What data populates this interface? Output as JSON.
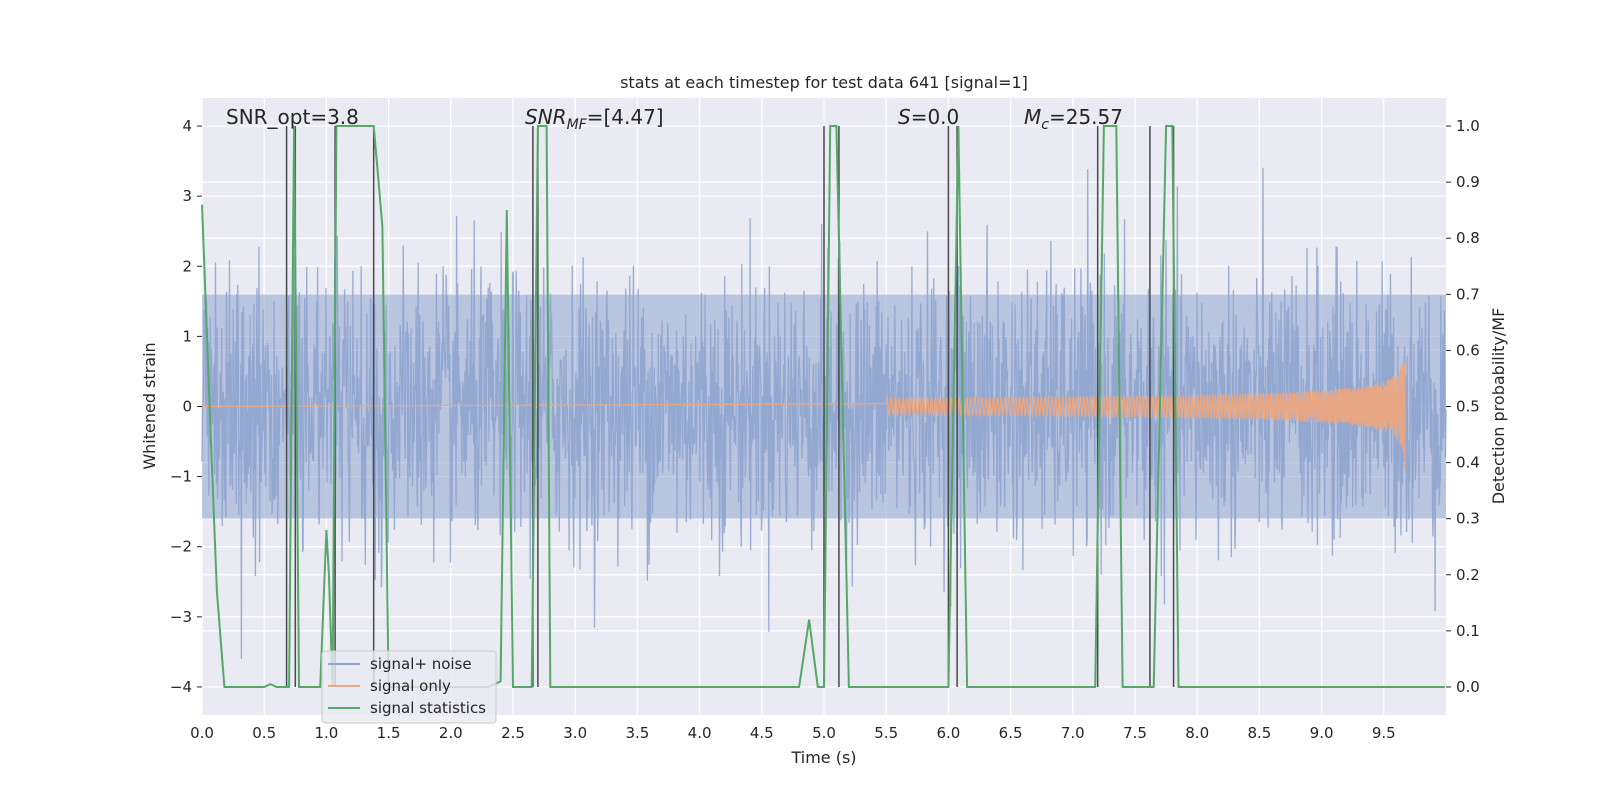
{
  "chart_data": {
    "type": "line",
    "title": "stats at each timestep for test data 641 [signal=1]",
    "xlabel": "Time (s)",
    "ylabel": "Whitened strain",
    "ylabel_right": "Detection probability/MF",
    "xlim": [
      0.0,
      10.0
    ],
    "ylim": [
      -4.4,
      4.4
    ],
    "ylim_right": [
      -0.05,
      1.05
    ],
    "x_ticks": [
      "0.0",
      "0.5",
      "1.0",
      "1.5",
      "2.0",
      "2.5",
      "3.0",
      "3.5",
      "4.0",
      "4.5",
      "5.0",
      "5.5",
      "6.0",
      "6.5",
      "7.0",
      "7.5",
      "8.0",
      "8.5",
      "9.0",
      "9.5"
    ],
    "y_ticks": [
      "4",
      "3",
      "2",
      "1",
      "0",
      "−1",
      "−2",
      "−3",
      "−4"
    ],
    "y_right_ticks": [
      "1.0",
      "0.9",
      "0.8",
      "0.7",
      "0.6",
      "0.5",
      "0.4",
      "0.3",
      "0.2",
      "0.1",
      "0.0"
    ],
    "grid": true,
    "legend_position": "lower-left",
    "annotations": {
      "snr_opt": "SNR_opt=3.8",
      "snr_mf_name": "SNR",
      "snr_mf_sub": "MF",
      "snr_mf_value": "=[4.47]",
      "s_name": "S",
      "s_value": "=0.0",
      "mc_name": "M",
      "mc_sub": "c",
      "mc_value": "=25.57"
    },
    "series": [
      {
        "name": "signal+ noise",
        "color": "#8fa5cf",
        "description_points": "noise band roughly ±1.6 with spikes to about ±3.6",
        "envelope": {
          "band": 1.6,
          "spike_max": 3.6
        }
      },
      {
        "name": "signal only",
        "color": "#e8a784",
        "chirp": {
          "start_time": 5.5,
          "end_time": 9.67,
          "peak_amplitude": 0.8,
          "min_amplitude": -0.9
        }
      },
      {
        "name": "signal statistics",
        "color": "#55a868",
        "axis": "right",
        "x": [
          0.0,
          0.07,
          0.12,
          0.18,
          0.5,
          0.55,
          0.6,
          0.7,
          0.74,
          0.78,
          0.8,
          0.82,
          0.9,
          0.95,
          1.0,
          1.02,
          1.05,
          1.08,
          1.1,
          1.2,
          1.38,
          1.42,
          1.45,
          1.5,
          2.3,
          2.4,
          2.45,
          2.5,
          2.55,
          2.6,
          2.65,
          2.7,
          2.72,
          2.77,
          2.8,
          3.0,
          4.8,
          4.88,
          4.95,
          5.0,
          5.05,
          5.1,
          5.2,
          6.0,
          6.08,
          6.15,
          6.6,
          7.0,
          7.18,
          7.25,
          7.35,
          7.4,
          7.6,
          7.65,
          7.75,
          7.8,
          7.85,
          8.0,
          9.99
        ],
        "values": [
          0.86,
          0.45,
          0.17,
          0.0,
          0.0,
          0.005,
          0.0,
          0.0,
          1.0,
          0.0,
          0.0,
          0.0,
          0.0,
          0.0,
          0.28,
          0.2,
          0.0,
          1.0,
          1.0,
          1.0,
          1.0,
          0.9,
          0.82,
          0.0,
          0.0,
          0.01,
          0.85,
          0.0,
          0.0,
          0.0,
          0.0,
          1.0,
          1.0,
          1.0,
          0.0,
          0.0,
          0.0,
          0.12,
          0.0,
          0.0,
          1.0,
          1.0,
          0.0,
          0.0,
          1.0,
          0.0,
          0.0,
          0.0,
          0.0,
          1.0,
          1.0,
          0.0,
          0.0,
          0.0,
          1.0,
          1.0,
          0.0,
          0.0,
          0.0
        ]
      }
    ],
    "vertical_lines_x": [
      0.68,
      0.75,
      1.07,
      1.38,
      2.66,
      2.7,
      5.0,
      5.12,
      6.0,
      6.07,
      7.2,
      7.62,
      7.81
    ],
    "vertical_line_color": "#4a4a4a"
  }
}
